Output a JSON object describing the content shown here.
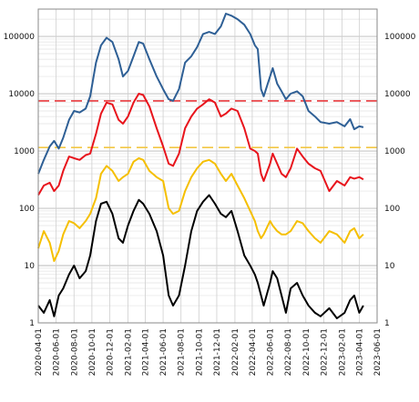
{
  "chart_data": {
    "type": "line",
    "title": "",
    "xlabel": "",
    "ylabel": "",
    "yscale": "log",
    "ylim": [
      1,
      300000
    ],
    "xlim": [
      "2020-04-01",
      "2023-06-01"
    ],
    "grid": true,
    "legend": "none",
    "x_ticks": [
      "2020-04-01",
      "2020-06-01",
      "2020-08-01",
      "2020-10-01",
      "2020-12-01",
      "2021-02-01",
      "2021-04-01",
      "2021-06-01",
      "2021-08-01",
      "2021-10-01",
      "2021-12-01",
      "2022-02-01",
      "2022-04-01",
      "2022-06-01",
      "2022-08-01",
      "2022-10-01",
      "2022-12-01",
      "2023-02-01",
      "2023-04-01",
      "2023-06-01"
    ],
    "y_ticks": [
      {
        "value": 1,
        "label": "1"
      },
      {
        "value": 10,
        "label": "10"
      },
      {
        "value": 100,
        "label": "100"
      },
      {
        "value": 1000,
        "label": "1000"
      },
      {
        "value": 10000,
        "label": "10000"
      },
      {
        "value": 100000,
        "label": "100000"
      }
    ],
    "reference_lines": [
      {
        "value": 7500,
        "color": "#e8383d",
        "style": "dashed"
      },
      {
        "value": 1150,
        "color": "#f2c744",
        "style": "dashed"
      }
    ],
    "series": [
      {
        "color": "#2e5f95",
        "width": 2,
        "points": [
          [
            "2020-04-01",
            400
          ],
          [
            "2020-04-20",
            700
          ],
          [
            "2020-05-10",
            1200
          ],
          [
            "2020-05-25",
            1500
          ],
          [
            "2020-06-10",
            1100
          ],
          [
            "2020-06-25",
            1700
          ],
          [
            "2020-07-15",
            3500
          ],
          [
            "2020-08-01",
            5000
          ],
          [
            "2020-08-20",
            4700
          ],
          [
            "2020-09-10",
            5500
          ],
          [
            "2020-09-25",
            9000
          ],
          [
            "2020-10-15",
            35000
          ],
          [
            "2020-11-01",
            70000
          ],
          [
            "2020-11-20",
            95000
          ],
          [
            "2020-12-10",
            80000
          ],
          [
            "2020-12-31",
            40000
          ],
          [
            "2021-01-15",
            20000
          ],
          [
            "2021-02-01",
            25000
          ],
          [
            "2021-02-20",
            45000
          ],
          [
            "2021-03-10",
            80000
          ],
          [
            "2021-03-25",
            75000
          ],
          [
            "2021-04-15",
            40000
          ],
          [
            "2021-05-10",
            20000
          ],
          [
            "2021-06-01",
            12000
          ],
          [
            "2021-06-20",
            8000
          ],
          [
            "2021-07-05",
            7500
          ],
          [
            "2021-07-25",
            12000
          ],
          [
            "2021-08-15",
            35000
          ],
          [
            "2021-09-05",
            45000
          ],
          [
            "2021-09-25",
            65000
          ],
          [
            "2021-10-15",
            110000
          ],
          [
            "2021-11-05",
            120000
          ],
          [
            "2021-11-25",
            110000
          ],
          [
            "2021-12-15",
            150000
          ],
          [
            "2022-01-01",
            250000
          ],
          [
            "2022-01-20",
            230000
          ],
          [
            "2022-02-10",
            200000
          ],
          [
            "2022-03-05",
            160000
          ],
          [
            "2022-03-25",
            110000
          ],
          [
            "2022-04-10",
            70000
          ],
          [
            "2022-04-20",
            60000
          ],
          [
            "2022-05-01",
            12000
          ],
          [
            "2022-05-10",
            9000
          ],
          [
            "2022-06-01",
            20000
          ],
          [
            "2022-06-10",
            28000
          ],
          [
            "2022-06-25",
            15000
          ],
          [
            "2022-07-10",
            11000
          ],
          [
            "2022-07-25",
            8000
          ],
          [
            "2022-08-10",
            10000
          ],
          [
            "2022-09-01",
            11000
          ],
          [
            "2022-09-20",
            9000
          ],
          [
            "2022-10-10",
            5000
          ],
          [
            "2022-11-01",
            4000
          ],
          [
            "2022-11-20",
            3200
          ],
          [
            "2022-12-20",
            3000
          ],
          [
            "2023-01-15",
            3200
          ],
          [
            "2023-02-10",
            2700
          ],
          [
            "2023-03-01",
            3600
          ],
          [
            "2023-03-15",
            2400
          ],
          [
            "2023-04-01",
            2700
          ],
          [
            "2023-04-15",
            2600
          ]
        ]
      },
      {
        "color": "#e8141c",
        "width": 2,
        "points": [
          [
            "2020-04-01",
            170
          ],
          [
            "2020-04-20",
            250
          ],
          [
            "2020-05-10",
            280
          ],
          [
            "2020-05-25",
            200
          ],
          [
            "2020-06-10",
            250
          ],
          [
            "2020-06-25",
            450
          ],
          [
            "2020-07-15",
            800
          ],
          [
            "2020-08-01",
            750
          ],
          [
            "2020-08-20",
            700
          ],
          [
            "2020-09-10",
            850
          ],
          [
            "2020-09-25",
            900
          ],
          [
            "2020-10-15",
            2000
          ],
          [
            "2020-11-01",
            4500
          ],
          [
            "2020-11-20",
            7000
          ],
          [
            "2020-12-10",
            6500
          ],
          [
            "2020-12-31",
            3500
          ],
          [
            "2021-01-15",
            3000
          ],
          [
            "2021-02-01",
            4000
          ],
          [
            "2021-02-20",
            7000
          ],
          [
            "2021-03-10",
            10000
          ],
          [
            "2021-03-25",
            9500
          ],
          [
            "2021-04-15",
            6000
          ],
          [
            "2021-05-10",
            2500
          ],
          [
            "2021-06-01",
            1200
          ],
          [
            "2021-06-20",
            600
          ],
          [
            "2021-07-05",
            550
          ],
          [
            "2021-07-25",
            900
          ],
          [
            "2021-08-15",
            2500
          ],
          [
            "2021-09-05",
            4000
          ],
          [
            "2021-09-25",
            5500
          ],
          [
            "2021-10-15",
            6500
          ],
          [
            "2021-11-05",
            8000
          ],
          [
            "2021-11-25",
            7000
          ],
          [
            "2021-12-15",
            4000
          ],
          [
            "2022-01-01",
            4500
          ],
          [
            "2022-01-20",
            5500
          ],
          [
            "2022-02-10",
            5000
          ],
          [
            "2022-03-05",
            2500
          ],
          [
            "2022-03-25",
            1100
          ],
          [
            "2022-04-10",
            1000
          ],
          [
            "2022-04-20",
            900
          ],
          [
            "2022-05-01",
            400
          ],
          [
            "2022-05-10",
            300
          ],
          [
            "2022-06-01",
            600
          ],
          [
            "2022-06-10",
            900
          ],
          [
            "2022-06-25",
            600
          ],
          [
            "2022-07-10",
            400
          ],
          [
            "2022-07-25",
            350
          ],
          [
            "2022-08-10",
            500
          ],
          [
            "2022-09-01",
            1100
          ],
          [
            "2022-09-20",
            800
          ],
          [
            "2022-10-10",
            600
          ],
          [
            "2022-11-01",
            500
          ],
          [
            "2022-11-20",
            450
          ],
          [
            "2022-12-20",
            200
          ],
          [
            "2023-01-15",
            300
          ],
          [
            "2023-02-10",
            250
          ],
          [
            "2023-03-01",
            350
          ],
          [
            "2023-03-15",
            330
          ],
          [
            "2023-04-01",
            350
          ],
          [
            "2023-04-15",
            320
          ]
        ]
      },
      {
        "color": "#f5bf00",
        "width": 2,
        "points": [
          [
            "2020-04-01",
            20
          ],
          [
            "2020-04-20",
            40
          ],
          [
            "2020-05-10",
            25
          ],
          [
            "2020-05-25",
            12
          ],
          [
            "2020-06-10",
            18
          ],
          [
            "2020-06-25",
            35
          ],
          [
            "2020-07-15",
            60
          ],
          [
            "2020-08-01",
            55
          ],
          [
            "2020-08-20",
            45
          ],
          [
            "2020-09-10",
            60
          ],
          [
            "2020-09-25",
            80
          ],
          [
            "2020-10-15",
            150
          ],
          [
            "2020-11-01",
            400
          ],
          [
            "2020-11-20",
            550
          ],
          [
            "2020-12-10",
            450
          ],
          [
            "2020-12-31",
            300
          ],
          [
            "2021-01-15",
            350
          ],
          [
            "2021-02-01",
            400
          ],
          [
            "2021-02-20",
            650
          ],
          [
            "2021-03-10",
            750
          ],
          [
            "2021-03-25",
            700
          ],
          [
            "2021-04-15",
            450
          ],
          [
            "2021-05-10",
            350
          ],
          [
            "2021-06-01",
            300
          ],
          [
            "2021-06-20",
            100
          ],
          [
            "2021-07-05",
            80
          ],
          [
            "2021-07-25",
            90
          ],
          [
            "2021-08-15",
            200
          ],
          [
            "2021-09-05",
            350
          ],
          [
            "2021-09-25",
            500
          ],
          [
            "2021-10-15",
            650
          ],
          [
            "2021-11-05",
            700
          ],
          [
            "2021-11-25",
            600
          ],
          [
            "2021-12-15",
            400
          ],
          [
            "2022-01-01",
            300
          ],
          [
            "2022-01-20",
            400
          ],
          [
            "2022-02-10",
            250
          ],
          [
            "2022-03-05",
            150
          ],
          [
            "2022-03-25",
            90
          ],
          [
            "2022-04-10",
            60
          ],
          [
            "2022-04-20",
            40
          ],
          [
            "2022-05-01",
            30
          ],
          [
            "2022-05-10",
            35
          ],
          [
            "2022-06-01",
            60
          ],
          [
            "2022-06-10",
            50
          ],
          [
            "2022-06-25",
            40
          ],
          [
            "2022-07-10",
            35
          ],
          [
            "2022-07-25",
            35
          ],
          [
            "2022-08-10",
            40
          ],
          [
            "2022-09-01",
            60
          ],
          [
            "2022-09-20",
            55
          ],
          [
            "2022-10-10",
            40
          ],
          [
            "2022-11-01",
            30
          ],
          [
            "2022-11-20",
            25
          ],
          [
            "2022-12-20",
            40
          ],
          [
            "2023-01-15",
            35
          ],
          [
            "2023-02-10",
            25
          ],
          [
            "2023-03-01",
            40
          ],
          [
            "2023-03-15",
            45
          ],
          [
            "2023-04-01",
            30
          ],
          [
            "2023-04-15",
            35
          ]
        ]
      },
      {
        "color": "#000000",
        "width": 2,
        "points": [
          [
            "2020-04-01",
            2
          ],
          [
            "2020-04-20",
            1.5
          ],
          [
            "2020-05-10",
            2.5
          ],
          [
            "2020-05-25",
            1.3
          ],
          [
            "2020-06-10",
            3
          ],
          [
            "2020-06-25",
            4
          ],
          [
            "2020-07-15",
            7
          ],
          [
            "2020-08-01",
            10
          ],
          [
            "2020-08-20",
            6
          ],
          [
            "2020-09-10",
            8
          ],
          [
            "2020-09-25",
            15
          ],
          [
            "2020-10-15",
            60
          ],
          [
            "2020-11-01",
            120
          ],
          [
            "2020-11-20",
            130
          ],
          [
            "2020-12-10",
            80
          ],
          [
            "2020-12-31",
            30
          ],
          [
            "2021-01-15",
            25
          ],
          [
            "2021-02-01",
            50
          ],
          [
            "2021-02-20",
            90
          ],
          [
            "2021-03-10",
            140
          ],
          [
            "2021-03-25",
            120
          ],
          [
            "2021-04-15",
            80
          ],
          [
            "2021-05-10",
            40
          ],
          [
            "2021-06-01",
            15
          ],
          [
            "2021-06-20",
            3
          ],
          [
            "2021-07-05",
            2
          ],
          [
            "2021-07-25",
            3
          ],
          [
            "2021-08-15",
            10
          ],
          [
            "2021-09-05",
            40
          ],
          [
            "2021-09-25",
            90
          ],
          [
            "2021-10-15",
            130
          ],
          [
            "2021-11-05",
            170
          ],
          [
            "2021-11-25",
            120
          ],
          [
            "2021-12-15",
            80
          ],
          [
            "2022-01-01",
            70
          ],
          [
            "2022-01-20",
            90
          ],
          [
            "2022-02-10",
            40
          ],
          [
            "2022-03-05",
            15
          ],
          [
            "2022-03-25",
            10
          ],
          [
            "2022-04-10",
            7
          ],
          [
            "2022-04-20",
            5
          ],
          [
            "2022-05-01",
            3
          ],
          [
            "2022-05-10",
            2
          ],
          [
            "2022-06-01",
            5
          ],
          [
            "2022-06-10",
            8
          ],
          [
            "2022-06-25",
            6
          ],
          [
            "2022-07-10",
            3
          ],
          [
            "2022-07-25",
            1.5
          ],
          [
            "2022-08-10",
            4
          ],
          [
            "2022-09-01",
            5
          ],
          [
            "2022-09-20",
            3
          ],
          [
            "2022-10-10",
            2
          ],
          [
            "2022-11-01",
            1.5
          ],
          [
            "2022-11-20",
            1.3
          ],
          [
            "2022-12-20",
            1.8
          ],
          [
            "2023-01-15",
            1.2
          ],
          [
            "2023-02-10",
            1.5
          ],
          [
            "2023-03-01",
            2.5
          ],
          [
            "2023-03-15",
            3
          ],
          [
            "2023-04-01",
            1.5
          ],
          [
            "2023-04-15",
            2
          ]
        ]
      }
    ]
  }
}
